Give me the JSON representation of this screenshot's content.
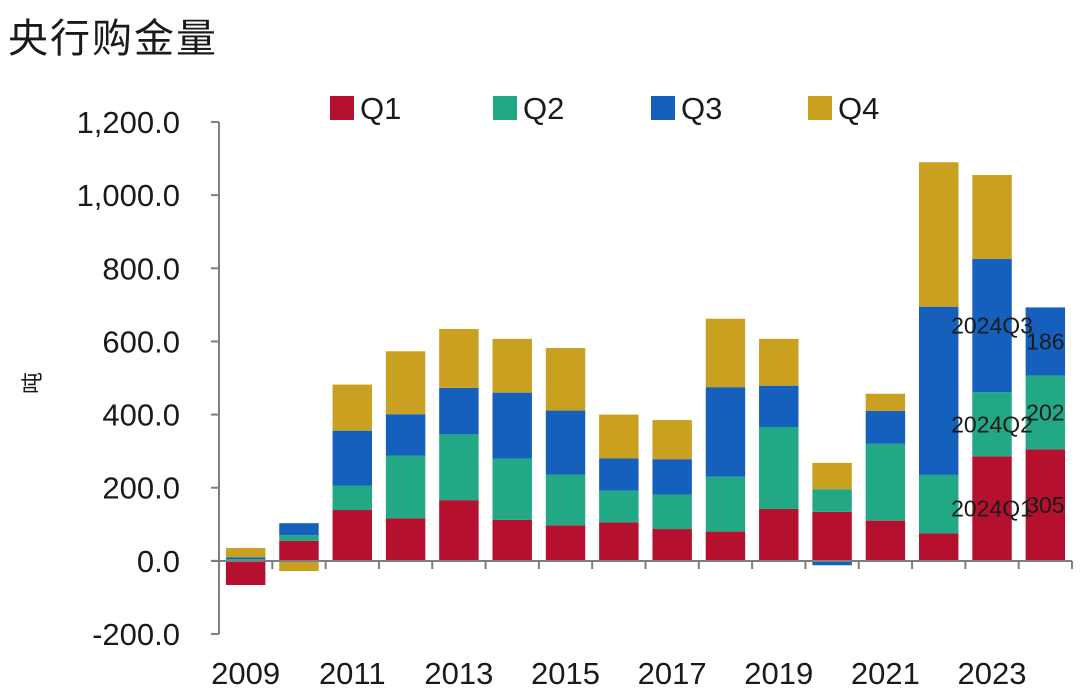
{
  "chart_data": {
    "type": "bar",
    "stacked": true,
    "title": "央行购金量",
    "ylabel": "吨",
    "xlabel": "",
    "ylim": [
      -200,
      1200
    ],
    "yticks": [
      "-200.0",
      "0.0",
      "200.0",
      "400.0",
      "600.0",
      "800.0",
      "1,000.0",
      "1,200.0"
    ],
    "categories": [
      "2009",
      "2010",
      "2011",
      "2012",
      "2013",
      "2014",
      "2015",
      "2016",
      "2017",
      "2018",
      "2019",
      "2020",
      "2021",
      "2022",
      "2023",
      "2024"
    ],
    "xtick_labels": [
      "2009",
      "2011",
      "2013",
      "2015",
      "2017",
      "2019",
      "2021",
      "2023"
    ],
    "grid": false,
    "legend_position": "top",
    "series": [
      {
        "name": "Q1",
        "color": "#b5112e",
        "values": [
          -66,
          55,
          139,
          116,
          166,
          112,
          97,
          105,
          87,
          80,
          142,
          134,
          110,
          75,
          286,
          305
        ]
      },
      {
        "name": "Q2",
        "color": "#22a884",
        "values": [
          5,
          15,
          67,
          172,
          180,
          168,
          139,
          87,
          94,
          150,
          224,
          62,
          210,
          160,
          175,
          202
        ]
      },
      {
        "name": "Q3",
        "color": "#1560bd",
        "values": [
          5,
          33,
          150,
          113,
          127,
          180,
          175,
          88,
          97,
          245,
          113,
          -12,
          90,
          460,
          365,
          186
        ]
      },
      {
        "name": "Q4",
        "color": "#c9a020",
        "values": [
          25,
          -28,
          126,
          172,
          161,
          147,
          171,
          120,
          107,
          187,
          128,
          72,
          47,
          395,
          229,
          0
        ]
      }
    ],
    "annotations": [
      {
        "text": "2024Q1",
        "series": "Q1",
        "category": "2023"
      },
      {
        "text": "305",
        "series": "Q1",
        "category": "2024"
      },
      {
        "text": "2024Q2",
        "series": "Q2",
        "category": "2023"
      },
      {
        "text": "202",
        "series": "Q2",
        "category": "2024"
      },
      {
        "text": "2024Q3",
        "series": "Q3",
        "category": "2023"
      },
      {
        "text": "186",
        "series": "Q3",
        "category": "2024"
      }
    ]
  }
}
